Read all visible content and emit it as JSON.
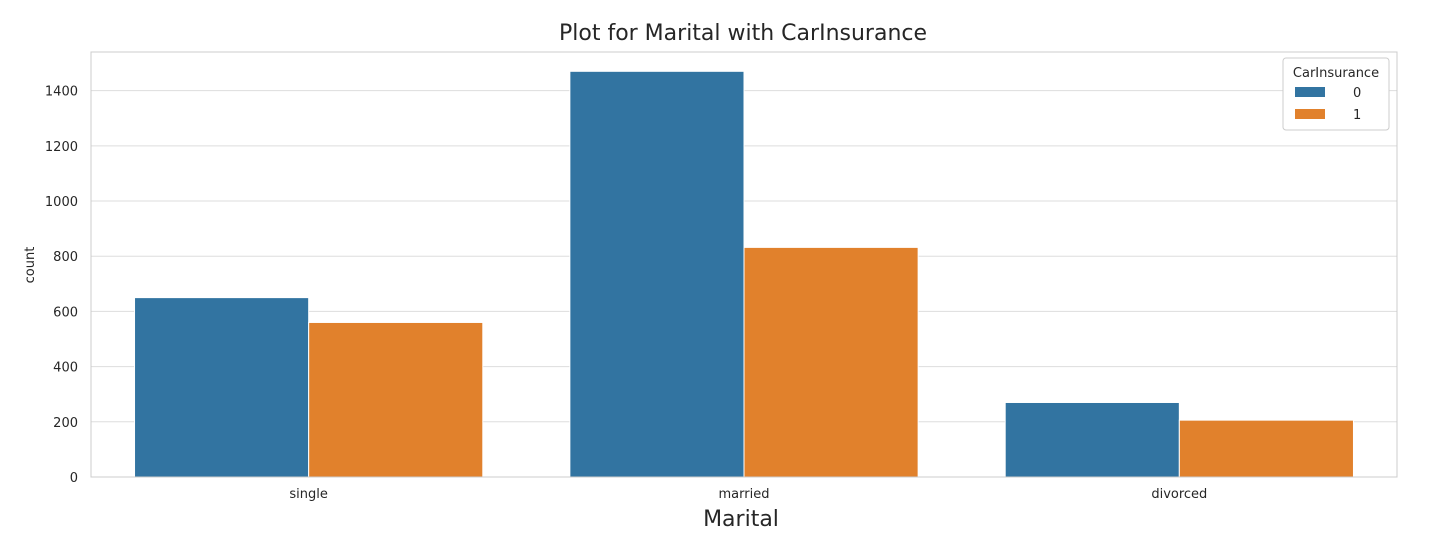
{
  "chart_data": {
    "type": "bar",
    "title": "Plot for Marital with CarInsurance",
    "xlabel": "Marital",
    "ylabel": "count",
    "categories": [
      "single",
      "married",
      "divorced"
    ],
    "series": [
      {
        "name": "0",
        "values": [
          650,
          1470,
          270
        ],
        "color": "#3274a1"
      },
      {
        "name": "1",
        "values": [
          560,
          832,
          206
        ],
        "color": "#e1812c"
      }
    ],
    "ylim": [
      0,
      1540
    ],
    "yticks": [
      0,
      200,
      400,
      600,
      800,
      1000,
      1200,
      1400
    ],
    "grid": true,
    "legend": {
      "title": "CarInsurance",
      "placement": "top-right"
    }
  }
}
